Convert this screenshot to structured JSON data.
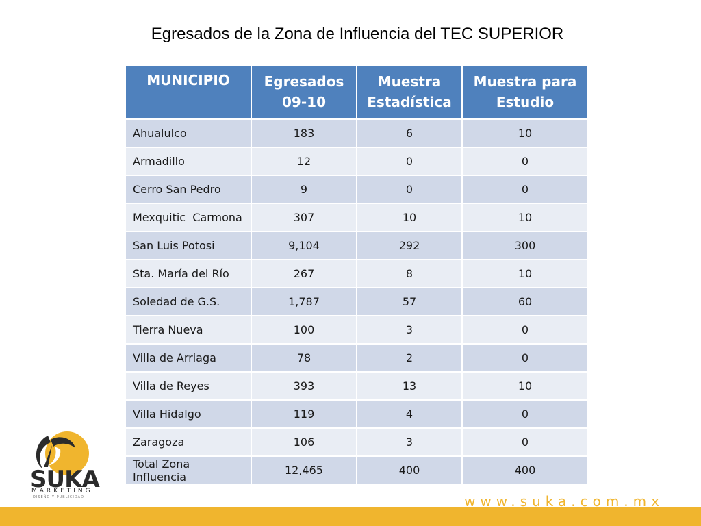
{
  "title": "Egresados de la Zona de Influencia del TEC SUPERIOR",
  "table": {
    "headers": {
      "municipio": "MUNICIPIO",
      "egresados_line1": "Egresados",
      "egresados_line2": "09-10",
      "muestra_est_line1": "Muestra",
      "muestra_est_line2": "Estadística",
      "muestra_estudio_line1": "Muestra para",
      "muestra_estudio_line2": "Estudio"
    },
    "rows": [
      {
        "municipio": "Ahualulco",
        "egresados": "183",
        "muestra_estadistica": "6",
        "muestra_estudio": "10"
      },
      {
        "municipio": "Armadillo",
        "egresados": "12",
        "muestra_estadistica": "0",
        "muestra_estudio": "0"
      },
      {
        "municipio": "Cerro San Pedro",
        "egresados": "9",
        "muestra_estadistica": "0",
        "muestra_estudio": "0"
      },
      {
        "municipio": "Mexquitic  Carmona",
        "egresados": "307",
        "muestra_estadistica": "10",
        "muestra_estudio": "10"
      },
      {
        "municipio": "San Luis Potosi",
        "egresados": "9,104",
        "muestra_estadistica": "292",
        "muestra_estudio": "300"
      },
      {
        "municipio": "Sta. María del Río",
        "egresados": "267",
        "muestra_estadistica": "8",
        "muestra_estudio": "10"
      },
      {
        "municipio": "Soledad de G.S.",
        "egresados": "1,787",
        "muestra_estadistica": "57",
        "muestra_estudio": "60"
      },
      {
        "municipio": "Tierra Nueva",
        "egresados": "100",
        "muestra_estadistica": "3",
        "muestra_estudio": "0"
      },
      {
        "municipio": "Villa de Arriaga",
        "egresados": "78",
        "muestra_estadistica": "2",
        "muestra_estudio": "0"
      },
      {
        "municipio": "Villa de Reyes",
        "egresados": "393",
        "muestra_estadistica": "13",
        "muestra_estudio": "10"
      },
      {
        "municipio": "Villa Hidalgo",
        "egresados": "119",
        "muestra_estadistica": "4",
        "muestra_estudio": "0"
      },
      {
        "municipio": "Zaragoza",
        "egresados": "106",
        "muestra_estadistica": "3",
        "muestra_estudio": "0"
      },
      {
        "municipio": "Total Zona Influencia",
        "egresados": "12,465",
        "muestra_estadistica": "400",
        "muestra_estudio": "400"
      }
    ]
  },
  "logo": {
    "word": "SUKA",
    "sub": "MARKETING",
    "tagline": "DISEÑO Y PUBLICIDAD",
    "icon": "pelican-logo-icon"
  },
  "footer": {
    "website": "www.suka.com.mx"
  },
  "colors": {
    "header_blue": "#4f81bd",
    "row_dark": "#d0d8e8",
    "row_light": "#e9edf4",
    "accent_gold": "#f0b52e"
  }
}
